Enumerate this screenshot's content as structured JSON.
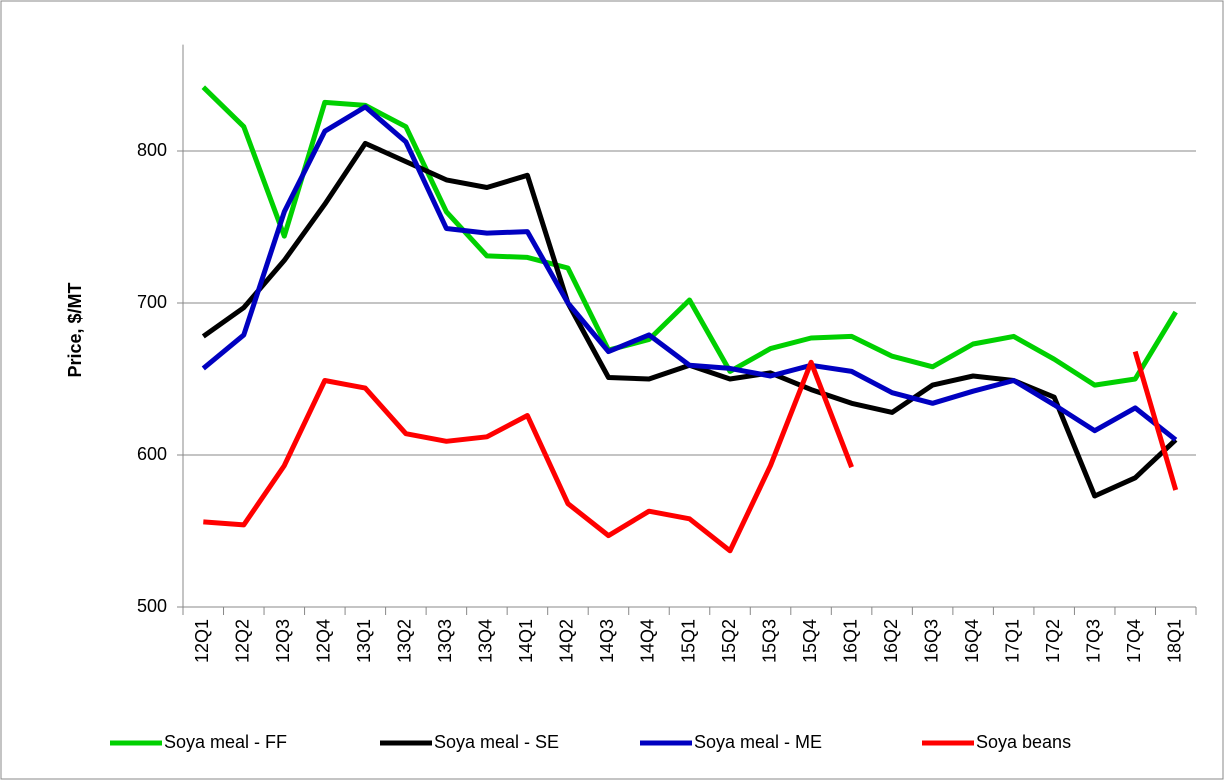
{
  "chart_data": {
    "type": "line",
    "y_label": "Price, $/MT",
    "categories": [
      "12Q1",
      "12Q2",
      "12Q3",
      "12Q4",
      "13Q1",
      "13Q2",
      "13Q3",
      "13Q4",
      "14Q1",
      "14Q2",
      "14Q3",
      "14Q4",
      "15Q1",
      "15Q2",
      "15Q3",
      "15Q4",
      "16Q1",
      "16Q2",
      "16Q3",
      "16Q4",
      "17Q1",
      "17Q2",
      "17Q3",
      "17Q4",
      "18Q1"
    ],
    "series": [
      {
        "name": "Soya meal - FF",
        "color": "#00d000",
        "values": [
          842,
          816,
          744,
          832,
          830,
          816,
          760,
          731,
          730,
          723,
          669,
          676,
          702,
          655,
          670,
          677,
          678,
          665,
          658,
          673,
          678,
          663,
          646,
          650,
          694
        ]
      },
      {
        "name": "Soya meal - SE",
        "color": "#000000",
        "values": [
          678,
          697,
          728,
          765,
          805,
          793,
          781,
          776,
          784,
          700,
          651,
          650,
          659,
          650,
          654,
          643,
          634,
          628,
          646,
          652,
          649,
          638,
          573,
          585,
          610
        ]
      },
      {
        "name": "Soya meal - ME",
        "color": "#0000c0",
        "values": [
          657,
          679,
          760,
          813,
          829,
          806,
          749,
          746,
          747,
          700,
          668,
          679,
          659,
          657,
          652,
          659,
          655,
          641,
          634,
          642,
          649,
          633,
          616,
          631,
          610
        ]
      },
      {
        "name": "Soya beans",
        "color": "#ff0000",
        "values": [
          556,
          554,
          593,
          649,
          644,
          614,
          609,
          612,
          626,
          568,
          547,
          563,
          558,
          537,
          593,
          661,
          592,
          null,
          null,
          null,
          null,
          null,
          null,
          668,
          577
        ]
      }
    ],
    "ylim": [
      500,
      870
    ],
    "yticks": [
      500,
      600,
      700,
      800
    ],
    "grid": true,
    "legend": "bottom"
  }
}
